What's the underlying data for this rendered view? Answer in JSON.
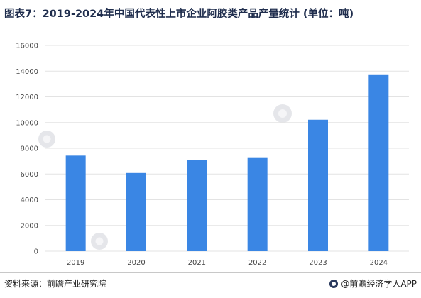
{
  "title": "图表7：2019-2024年中国代表性上市企业阿胶类产品产量统计 (单位：吨)",
  "footer": {
    "source": "资料来源：前瞻产业研究院",
    "brand": "@前瞻经济学人APP"
  },
  "colors": {
    "bar": "#3a86e4"
  },
  "chart_data": {
    "type": "bar",
    "title": "图表7：2019-2024年中国代表性上市企业阿胶类产品产量统计 (单位：吨)",
    "categories": [
      "2019",
      "2020",
      "2021",
      "2022",
      "2023",
      "2024"
    ],
    "values": [
      7430,
      6080,
      7070,
      7300,
      10220,
      13750
    ],
    "ylim": [
      0,
      16000
    ],
    "yticks": [
      0,
      2000,
      4000,
      6000,
      8000,
      10000,
      12000,
      14000,
      16000
    ],
    "xlabel": "",
    "ylabel": "",
    "grid": true,
    "legend": "none"
  }
}
